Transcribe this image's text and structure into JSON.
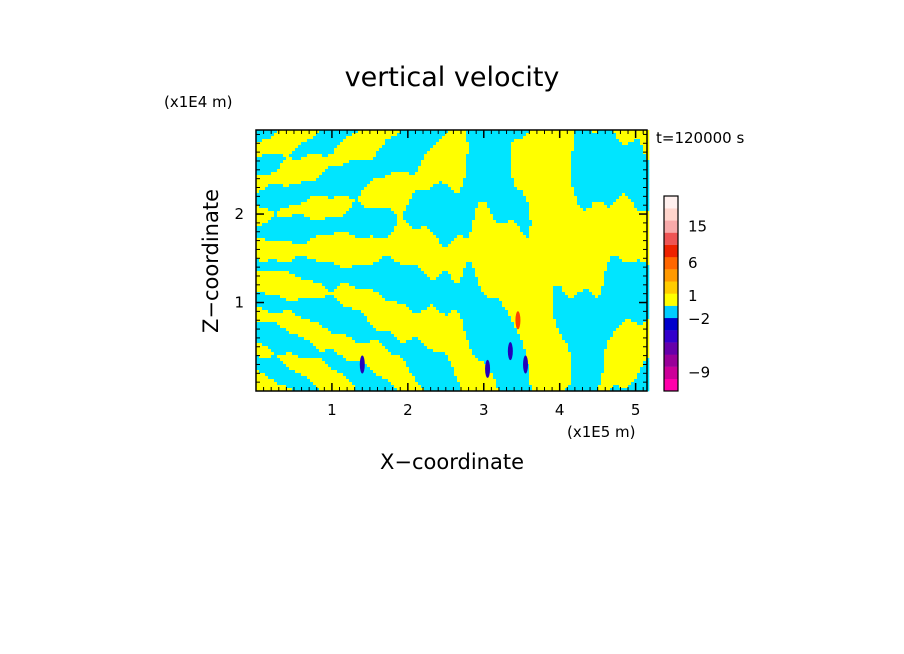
{
  "chart_data": {
    "type": "heatmap",
    "title": "vertical velocity",
    "xlabel": "X−coordinate",
    "ylabel": "Z−coordinate",
    "x_unit": "(x1E5 m)",
    "y_unit": "(x1E4 m)",
    "time_label": "t=120000 s",
    "xlim": [
      0,
      5.15
    ],
    "ylim": [
      0,
      2.95
    ],
    "x_ticks": [
      1,
      2,
      3,
      4,
      5
    ],
    "y_ticks": [
      1,
      2
    ],
    "x_tick_labels": [
      "1",
      "2",
      "3",
      "4",
      "5"
    ],
    "y_tick_labels": [
      "1",
      "2"
    ],
    "grid": false,
    "legend_position": "right",
    "colorbar": {
      "levels": [
        {
          "color": "#ff00aa"
        },
        {
          "color": "#cc0099"
        },
        {
          "color": "#990099"
        },
        {
          "color": "#6600aa"
        },
        {
          "color": "#3300cc"
        },
        {
          "color": "#0000cc"
        },
        {
          "color": "#00ccff"
        },
        {
          "color": "#ffff00"
        },
        {
          "color": "#ffcc00"
        },
        {
          "color": "#ff9900"
        },
        {
          "color": "#ff6600"
        },
        {
          "color": "#ee2200"
        },
        {
          "color": "#ee5555"
        },
        {
          "color": "#f7aaaa"
        },
        {
          "color": "#ffd5cc"
        },
        {
          "color": "#fff0ee"
        }
      ],
      "tick_labels": [
        {
          "label": "15",
          "level": 13
        },
        {
          "label": "6",
          "level": 10
        },
        {
          "label": "1",
          "level": 7.3
        },
        {
          "label": "−2",
          "level": 5.4
        },
        {
          "label": "−9",
          "level": 1
        }
      ]
    },
    "field": {
      "positive_color": "#ffff00",
      "negative_color": "#00e5ff",
      "strong_negative_color": "#2200bb",
      "strong_positive_color": "#ff4400",
      "description_values_shown": "Alternating yellow (w>0) and cyan (w<0) tilted wave bands; small intense cores near x=1.4, 3.0-3.5"
    }
  }
}
